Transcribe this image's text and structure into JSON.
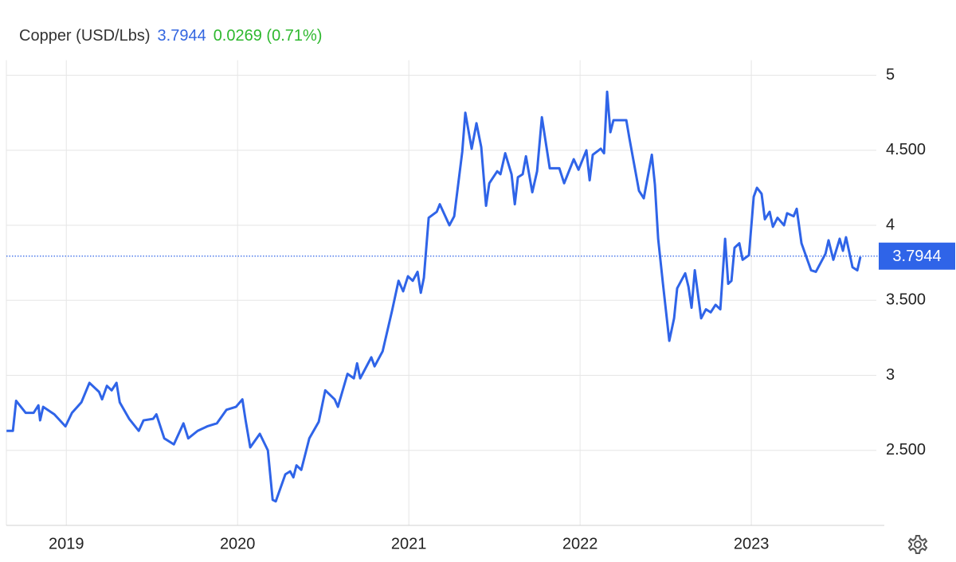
{
  "chart_data": {
    "type": "line",
    "title": "Copper (USD/Lbs)",
    "last_price": 3.7944,
    "change": 0.0269,
    "change_percent": "(0.71%)",
    "color": "#2f64e8",
    "grid": true,
    "xlim": [
      2018.65,
      2023.73
    ],
    "xticks": [
      2019,
      2020,
      2021,
      2022,
      2023
    ],
    "ylim": [
      2,
      5.1
    ],
    "yticks": [
      {
        "value": 2.5,
        "label": "2.500"
      },
      3,
      {
        "value": 3.5,
        "label": "3.500"
      },
      4,
      {
        "value": 4.5,
        "label": "4.500"
      },
      5
    ],
    "x": [
      2018.651,
      2018.688,
      2018.707,
      2018.763,
      2018.809,
      2018.837,
      2018.847,
      2018.865,
      2018.93,
      2018.995,
      2019.033,
      2019.088,
      2019.135,
      2019.191,
      2019.209,
      2019.237,
      2019.265,
      2019.293,
      2019.312,
      2019.367,
      2019.423,
      2019.451,
      2019.507,
      2019.526,
      2019.572,
      2019.628,
      2019.684,
      2019.712,
      2019.767,
      2019.823,
      2019.879,
      2019.935,
      2019.991,
      2020.028,
      2020.047,
      2020.074,
      2020.13,
      2020.177,
      2020.205,
      2020.223,
      2020.279,
      2020.307,
      2020.326,
      2020.344,
      2020.372,
      2020.419,
      2020.474,
      2020.512,
      2020.567,
      2020.586,
      2020.642,
      2020.679,
      2020.698,
      2020.716,
      2020.781,
      2020.8,
      2020.847,
      2020.902,
      2020.94,
      2020.967,
      2020.995,
      2021.023,
      2021.051,
      2021.07,
      2021.088,
      2021.116,
      2021.163,
      2021.181,
      2021.237,
      2021.265,
      2021.312,
      2021.33,
      2021.367,
      2021.395,
      2021.423,
      2021.451,
      2021.47,
      2021.516,
      2021.535,
      2021.563,
      2021.6,
      2021.619,
      2021.637,
      2021.665,
      2021.684,
      2021.721,
      2021.749,
      2021.777,
      2021.823,
      2021.879,
      2021.907,
      2021.963,
      2021.991,
      2022.037,
      2022.056,
      2022.074,
      2022.121,
      2022.14,
      2022.158,
      2022.177,
      2022.195,
      2022.27,
      2022.288,
      2022.344,
      2022.372,
      2022.419,
      2022.437,
      2022.456,
      2022.484,
      2022.521,
      2022.549,
      2022.567,
      2022.614,
      2022.633,
      2022.651,
      2022.67,
      2022.707,
      2022.735,
      2022.763,
      2022.791,
      2022.819,
      2022.847,
      2022.865,
      2022.884,
      2022.902,
      2022.93,
      2022.949,
      2022.986,
      2023.014,
      2023.033,
      2023.06,
      2023.079,
      2023.107,
      2023.126,
      2023.153,
      2023.191,
      2023.209,
      2023.247,
      2023.265,
      2023.293,
      2023.349,
      2023.377,
      2023.433,
      2023.451,
      2023.479,
      2023.516,
      2023.535,
      2023.553,
      2023.591,
      2023.619,
      2023.637
    ],
    "values": [
      2.63,
      2.63,
      2.83,
      2.75,
      2.75,
      2.8,
      2.7,
      2.79,
      2.74,
      2.66,
      2.75,
      2.82,
      2.95,
      2.89,
      2.84,
      2.93,
      2.9,
      2.95,
      2.82,
      2.71,
      2.63,
      2.7,
      2.71,
      2.74,
      2.58,
      2.54,
      2.68,
      2.58,
      2.63,
      2.66,
      2.68,
      2.77,
      2.79,
      2.84,
      2.7,
      2.52,
      2.61,
      2.5,
      2.17,
      2.16,
      2.34,
      2.36,
      2.32,
      2.4,
      2.37,
      2.58,
      2.69,
      2.9,
      2.84,
      2.79,
      3.01,
      2.98,
      3.08,
      2.98,
      3.12,
      3.06,
      3.16,
      3.43,
      3.63,
      3.56,
      3.66,
      3.63,
      3.69,
      3.55,
      3.65,
      4.05,
      4.09,
      4.14,
      4.0,
      4.06,
      4.49,
      4.75,
      4.51,
      4.68,
      4.52,
      4.13,
      4.28,
      4.36,
      4.34,
      4.48,
      4.34,
      4.14,
      4.32,
      4.34,
      4.46,
      4.22,
      4.36,
      4.72,
      4.38,
      4.38,
      4.28,
      4.44,
      4.37,
      4.5,
      4.3,
      4.47,
      4.51,
      4.48,
      4.89,
      4.62,
      4.7,
      4.7,
      4.58,
      4.23,
      4.18,
      4.47,
      4.27,
      3.91,
      3.61,
      3.23,
      3.38,
      3.58,
      3.68,
      3.59,
      3.45,
      3.7,
      3.38,
      3.44,
      3.42,
      3.47,
      3.44,
      3.91,
      3.61,
      3.63,
      3.85,
      3.88,
      3.77,
      3.8,
      4.19,
      4.25,
      4.21,
      4.04,
      4.09,
      3.99,
      4.05,
      4.0,
      4.08,
      4.06,
      4.11,
      3.88,
      3.7,
      3.69,
      3.81,
      3.9,
      3.77,
      3.91,
      3.83,
      3.92,
      3.72,
      3.7,
      3.79
    ]
  }
}
